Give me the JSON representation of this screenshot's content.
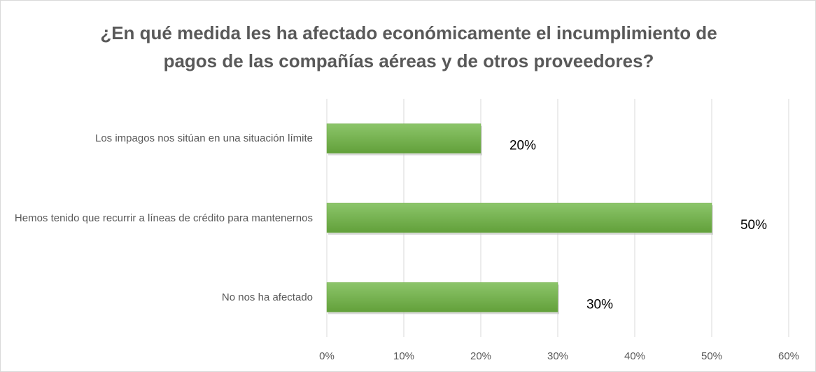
{
  "chart_data": {
    "type": "bar",
    "orientation": "horizontal",
    "title": "¿En qué medida les ha afectado económicamente el incumplimiento de pagos de las compañías aéreas y de otros proveedores?",
    "categories": [
      "Los impagos nos sitúan en una situación límite",
      "Hemos tenido que recurrir a líneas de crédito para mantenernos",
      "No nos ha afectado"
    ],
    "values": [
      20,
      50,
      30
    ],
    "value_labels": [
      "20%",
      "50%",
      "30%"
    ],
    "color": "#70ad47",
    "xlim": [
      0,
      60
    ],
    "xticks": [
      {
        "value": 0,
        "label": "0%"
      },
      {
        "value": 10,
        "label": "10%"
      },
      {
        "value": 20,
        "label": "20%"
      },
      {
        "value": 30,
        "label": "30%"
      },
      {
        "value": 40,
        "label": "40%"
      },
      {
        "value": 50,
        "label": "50%"
      },
      {
        "value": 60,
        "label": "60%"
      }
    ],
    "grid": true
  }
}
